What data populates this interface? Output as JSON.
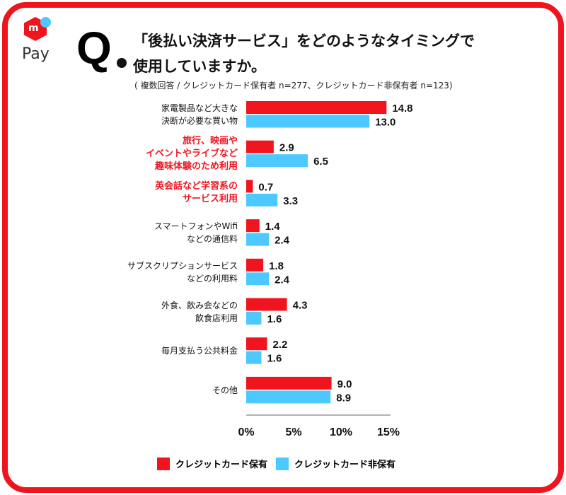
{
  "brand": {
    "logo_text": "Pay",
    "logo_letter": "m"
  },
  "question": {
    "q": "Q",
    "line1": "「後払い決済サービス」をどのようなタイミングで",
    "line2": "使用していますか。",
    "note": "( 複数回答 / クレジットカード保有者 n=277、クレジットカード非保有者 n=123)"
  },
  "colors": {
    "holder": "#f0141e",
    "non_holder": "#4dc9ff",
    "frame": "#f0141e"
  },
  "chart_data": {
    "type": "bar",
    "orientation": "horizontal",
    "categories": [
      {
        "lines": [
          "家電製品など大きな",
          "決断が必要な買い物"
        ],
        "highlight": false
      },
      {
        "lines": [
          "旅行、映画や",
          "イベントやライブなど",
          "趣味体験のため利用"
        ],
        "highlight": true
      },
      {
        "lines": [
          "英会話など学習系の",
          "サービス利用"
        ],
        "highlight": true
      },
      {
        "lines": [
          "スマートフォンやWifi",
          "などの通信料"
        ],
        "highlight": false
      },
      {
        "lines": [
          "サブスクリプションサービス",
          "などの利用料"
        ],
        "highlight": false
      },
      {
        "lines": [
          "外食、飲み会などの",
          "飲食店利用"
        ],
        "highlight": false
      },
      {
        "lines": [
          "毎月支払う公共料金"
        ],
        "highlight": false
      },
      {
        "lines": [
          "その他"
        ],
        "highlight": false
      }
    ],
    "series": [
      {
        "name": "クレジットカード保有",
        "values": [
          14.8,
          2.9,
          0.7,
          1.4,
          1.8,
          4.3,
          2.2,
          9.0
        ]
      },
      {
        "name": "クレジットカード非保有",
        "values": [
          13.0,
          6.5,
          3.3,
          2.4,
          2.4,
          1.6,
          1.6,
          8.9
        ]
      }
    ],
    "xlim": [
      0,
      15
    ],
    "xticks": [
      0,
      5,
      10,
      15
    ],
    "xtick_labels": [
      "0%",
      "5%",
      "10%",
      "15%"
    ],
    "legend": "bottom"
  }
}
